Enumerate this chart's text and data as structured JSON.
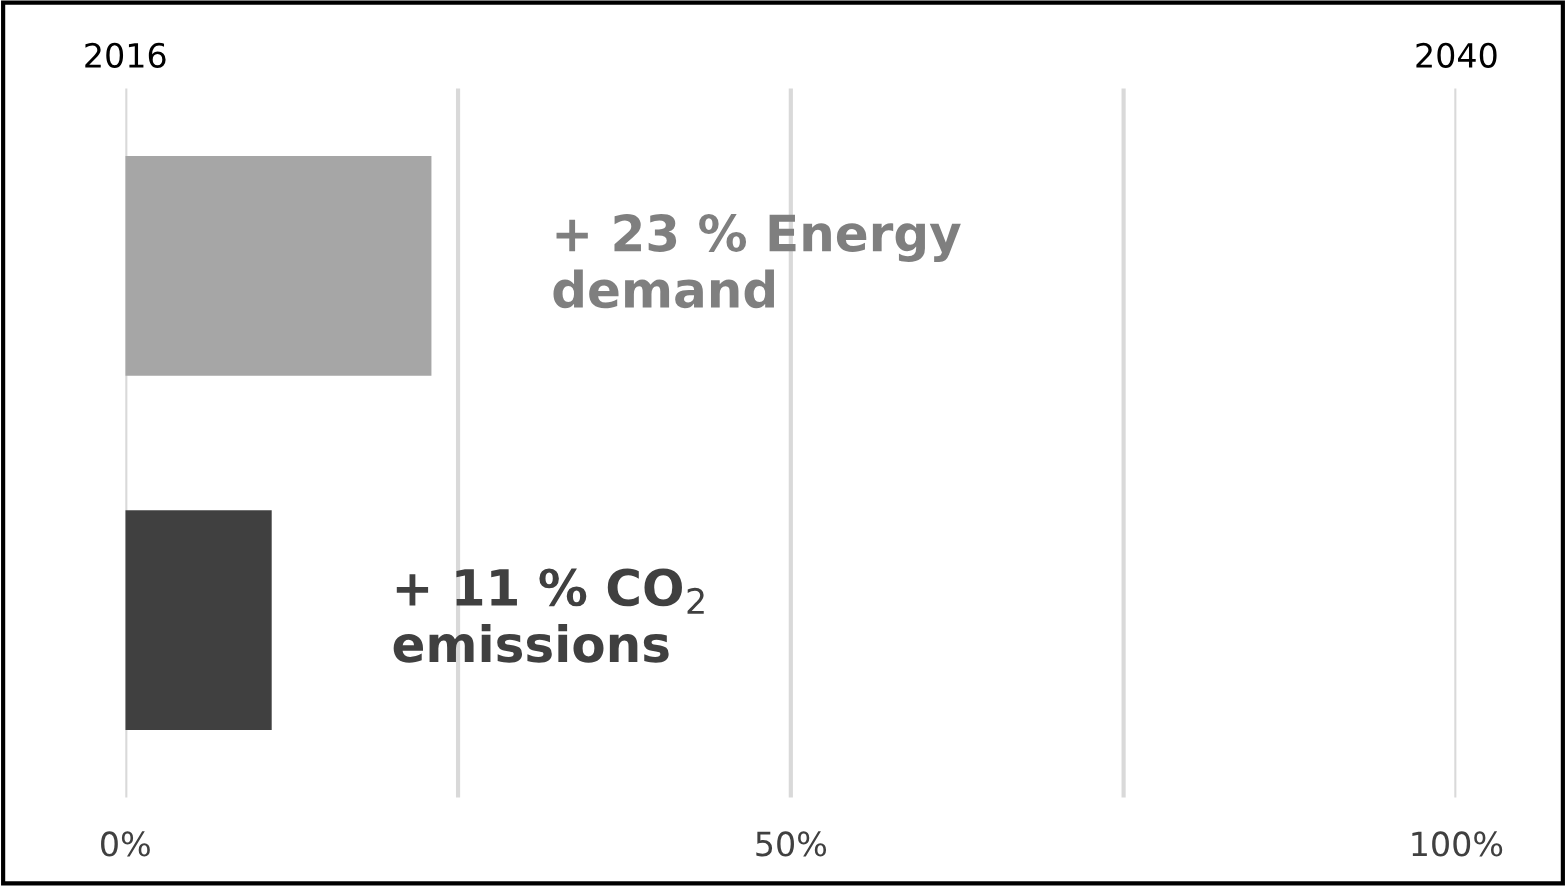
{
  "chart_data": {
    "type": "bar",
    "orientation": "horizontal",
    "categories": [
      null,
      null
    ],
    "values": [
      23,
      11
    ],
    "colors": [
      "#a6a6a6",
      "#404040"
    ],
    "value_labels": [
      "+ 23 % Energy\ndemand",
      "+ 11 % CO$_{2}$\nemissions"
    ],
    "xlim": [
      0,
      100
    ],
    "xticks": [
      {
        "value": 0,
        "label": "0%"
      },
      {
        "value": 25,
        "label": null
      },
      {
        "value": 50,
        "label": "50%"
      },
      {
        "value": 75,
        "label": null
      },
      {
        "value": 100,
        "label": "100%"
      }
    ],
    "annotations": [
      "2016",
      "2040"
    ],
    "grid": "x",
    "legend": false
  }
}
